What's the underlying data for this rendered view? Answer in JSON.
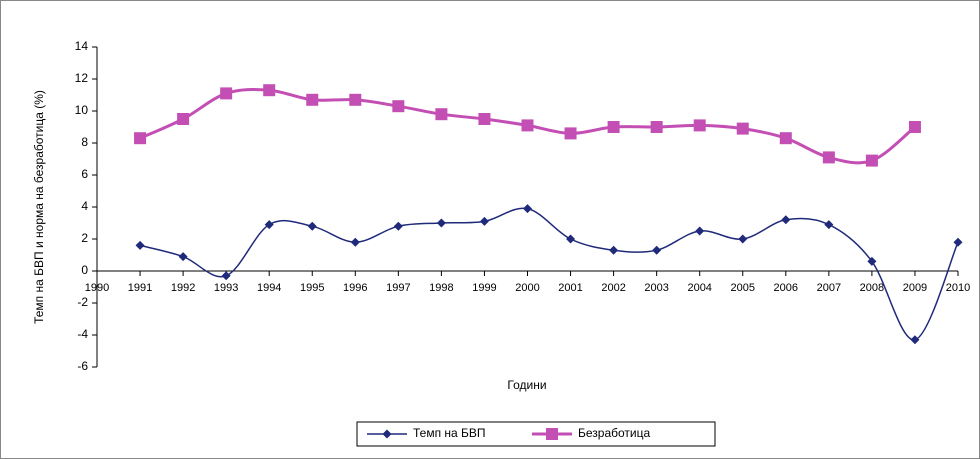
{
  "chart_data": {
    "type": "line",
    "xlabel": "Години",
    "ylabel": "Темп на БВП и норма на безработица (%)",
    "x": [
      1991,
      1992,
      1993,
      1994,
      1995,
      1996,
      1997,
      1998,
      1999,
      2000,
      2001,
      2002,
      2003,
      2004,
      2005,
      2006,
      2007,
      2008,
      2009,
      2010
    ],
    "series": [
      {
        "name": "Темп на БВП",
        "color": "#1f2a7a",
        "marker": "diamond",
        "values": [
          1.6,
          0.9,
          -0.3,
          2.9,
          2.8,
          1.8,
          2.8,
          3.0,
          3.1,
          3.9,
          2.0,
          1.3,
          1.3,
          2.5,
          2.0,
          3.2,
          2.9,
          0.6,
          -4.3,
          1.8
        ]
      },
      {
        "name": "Безработица",
        "color": "#c44fb4",
        "marker": "square",
        "values": [
          8.3,
          9.5,
          11.1,
          11.3,
          10.7,
          10.7,
          10.3,
          9.8,
          9.5,
          9.1,
          8.6,
          9.0,
          9.0,
          9.1,
          8.9,
          8.3,
          7.1,
          6.9,
          9.0,
          null
        ]
      }
    ],
    "xlim": [
      1990,
      2010
    ],
    "xticks": [
      1990,
      1991,
      1992,
      1993,
      1994,
      1995,
      1996,
      1997,
      1998,
      1999,
      2000,
      2001,
      2002,
      2003,
      2004,
      2005,
      2006,
      2007,
      2008,
      2009,
      2010
    ],
    "ylim": [
      -6,
      14
    ],
    "yticks": [
      -6,
      -4,
      -2,
      0,
      2,
      4,
      6,
      8,
      10,
      12,
      14
    ],
    "grid": false,
    "smooth": true,
    "legend": "bottom"
  }
}
